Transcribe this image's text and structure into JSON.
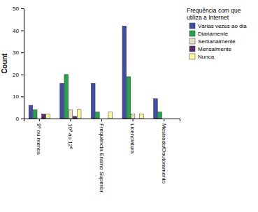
{
  "chart_data": {
    "type": "bar",
    "y_label": "Count",
    "legend_title": "Frequência com que utiliza a Internet",
    "categories": [
      "9º ou menos",
      "10º ao 12º",
      "Frequência Ensino Superior",
      "Licenciatura",
      "Mestrado/Doutoramento"
    ],
    "series": [
      {
        "name": "Várias vezes ao dia",
        "color": "#3f4ea3",
        "values": [
          6,
          16,
          16,
          42,
          9
        ]
      },
      {
        "name": "Diariamente",
        "color": "#25a24b",
        "values": [
          4,
          20,
          3,
          19,
          3
        ]
      },
      {
        "name": "Semanalmente",
        "color": "#e6e4c4",
        "values": [
          null,
          4,
          null,
          2,
          null
        ]
      },
      {
        "name": "Mensalmente",
        "color": "#5c2a68",
        "values": [
          2,
          1,
          null,
          null,
          null
        ]
      },
      {
        "name": "Nunca",
        "color": "#fbf89a",
        "values": [
          2,
          4,
          3,
          2,
          null
        ]
      }
    ],
    "ylim": [
      0,
      50
    ],
    "yticks": [
      0,
      10,
      20,
      30,
      40,
      50
    ],
    "grid": false,
    "legend": "right"
  }
}
